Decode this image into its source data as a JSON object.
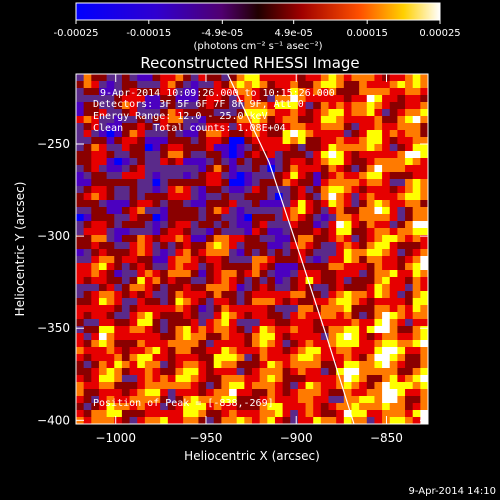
{
  "colorbar": {
    "ticks": [
      "-0.00025",
      "-0.00015",
      "-4.9e-05",
      "4.9e-05",
      "0.00015",
      "0.00025"
    ],
    "tick_values": [
      -0.00025,
      -0.00015,
      -4.9e-05,
      4.9e-05,
      0.00015,
      0.00025
    ],
    "range": [
      -0.00025,
      0.00025
    ],
    "units_label": "(photons cm⁻² s⁻¹ asec⁻²)"
  },
  "chart_data": {
    "type": "heatmap",
    "title": "Reconstructed RHESSI Image",
    "xlabel": "Heliocentric X (arcsec)",
    "ylabel": "Heliocentric Y (arcsec)",
    "xlim": [
      -1022,
      -827
    ],
    "ylim": [
      -402,
      -212
    ],
    "x_ticks": [
      -1000,
      -950,
      -900,
      -850
    ],
    "y_ticks": [
      -250,
      -300,
      -350,
      -400
    ],
    "x_tick_labels": [
      "−1000",
      "−950",
      "−900",
      "−850"
    ],
    "y_tick_labels": [
      "−250",
      "−300",
      "−350",
      "−400"
    ],
    "limb_curve": [
      [
        -938,
        -212
      ],
      [
        -915,
        -260
      ],
      [
        -898,
        -310
      ],
      [
        -883,
        -355
      ],
      [
        -868,
        -402
      ]
    ],
    "colormap": [
      "#0000ff",
      "#4b00c0",
      "#5a2a8a",
      "#8a0000",
      "#e60000",
      "#ff7a00",
      "#ffff00",
      "#ffffff"
    ],
    "annotations": {
      "time_range": "9-Apr-2014 10:09:26.000 to 10:15:26.000",
      "detectors": "Detectors: 3F 5F 6F 7F 8F 9F, Att 0",
      "energy": "Energy Range: 12.0 - 25.0 keV",
      "clean": "Clean     Total counts: 1.08E+04",
      "peak": "Position of Peak = [-838,-269]"
    },
    "peak_position": [
      -838,
      -269
    ]
  },
  "footer": {
    "timestamp": "9-Apr-2014 14:10"
  }
}
